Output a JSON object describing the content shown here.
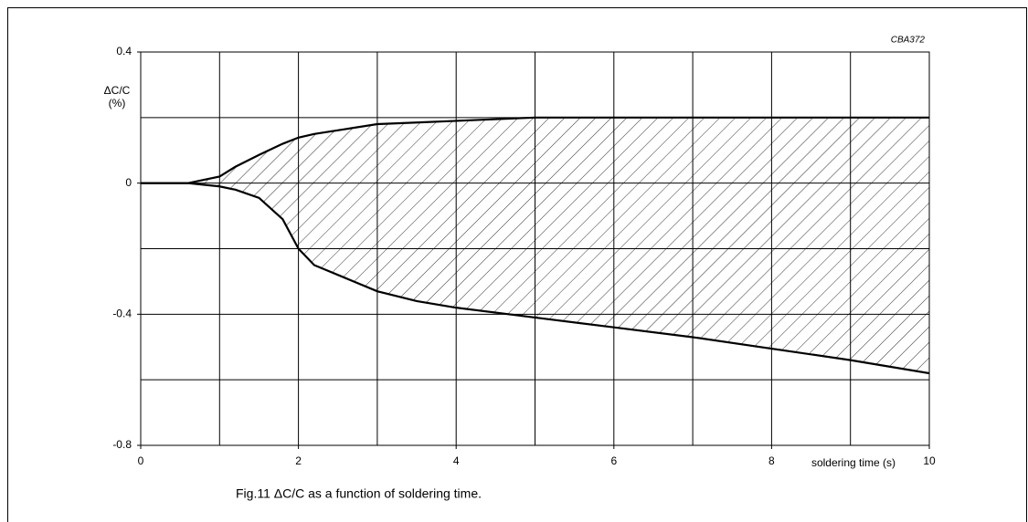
{
  "chart_data": {
    "type": "band",
    "code": "CBA372",
    "ylabel": [
      "ΔC/C",
      "(%)"
    ],
    "xlabel": "soldering time (s)",
    "caption": "Fig.11  ΔC/C as a function of soldering time.",
    "x": [
      0,
      0.6,
      1,
      1.2,
      1.5,
      1.8,
      2,
      2.2,
      2.6,
      3,
      3.5,
      4,
      5,
      6,
      7,
      8,
      9,
      10
    ],
    "series": [
      {
        "name": "upper",
        "color": "#000000",
        "values": [
          0,
          0,
          0.02,
          0.05,
          0.086,
          0.12,
          0.139,
          0.15,
          0.165,
          0.18,
          0.185,
          0.19,
          0.2,
          0.2,
          0.2,
          0.2,
          0.2,
          0.2
        ]
      },
      {
        "name": "lower",
        "color": "#000000",
        "values": [
          0,
          0,
          -0.01,
          -0.02,
          -0.045,
          -0.11,
          -0.2,
          -0.25,
          -0.29,
          -0.33,
          -0.36,
          -0.38,
          -0.41,
          -0.44,
          -0.47,
          -0.505,
          -0.54,
          -0.58
        ]
      }
    ],
    "xlim": [
      0,
      10
    ],
    "ylim": [
      -0.8,
      0.4
    ],
    "xticks": [
      0,
      2,
      4,
      6,
      8,
      10
    ],
    "yticks": [
      0.4,
      0,
      -0.4,
      -0.8
    ],
    "xgrid": [
      1,
      2,
      3,
      4,
      5,
      6,
      7,
      8,
      9
    ],
    "ygrid": [
      0.2,
      0,
      -0.2,
      -0.4,
      -0.6
    ],
    "hatch": true
  }
}
